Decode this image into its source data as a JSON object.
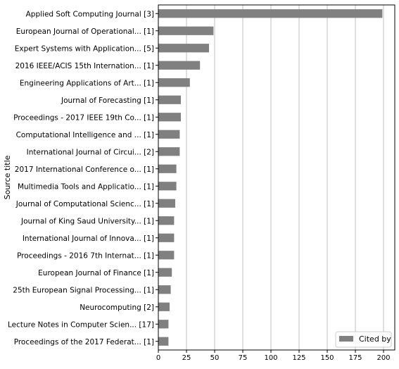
{
  "chart_data": {
    "type": "bar",
    "orientation": "horizontal",
    "ylabel": "Source title",
    "xlabel": "",
    "xlim": [
      0,
      210
    ],
    "xticks": [
      0,
      25,
      50,
      75,
      100,
      125,
      150,
      175,
      200
    ],
    "grid": "vertical",
    "legend": {
      "position": "bottom-right"
    },
    "categories": [
      "Applied Soft Computing Journal [3]",
      "European Journal of Operational... [1]",
      "Expert Systems with Application... [5]",
      "2016 IEEE/ACIS 15th Internation... [1]",
      "Engineering Applications of Art... [1]",
      "Journal of Forecasting [1]",
      "Proceedings - 2017 IEEE 19th Co... [1]",
      "Computational Intelligence and ... [1]",
      "International Journal of Circui... [2]",
      "2017 International Conference o... [1]",
      "Multimedia Tools and Applicatio... [1]",
      "Journal of Computational Scienc... [1]",
      "Journal of King Saud University... [1]",
      "International Journal of Innova... [1]",
      "Proceedings - 2016 7th Internat... [1]",
      "European Journal of Finance [1]",
      "25th European Signal Processing... [1]",
      "Neurocomputing [2]",
      "Lecture Notes in Computer Scien... [17]",
      "Proceedings of the 2017 Federat... [1]"
    ],
    "series": [
      {
        "name": "Cited by",
        "color": "#808080",
        "values": [
          199,
          49,
          45,
          37,
          28,
          20,
          20,
          19,
          19,
          16,
          16,
          15,
          14,
          14,
          14,
          12,
          11,
          10,
          9,
          9
        ]
      }
    ]
  }
}
